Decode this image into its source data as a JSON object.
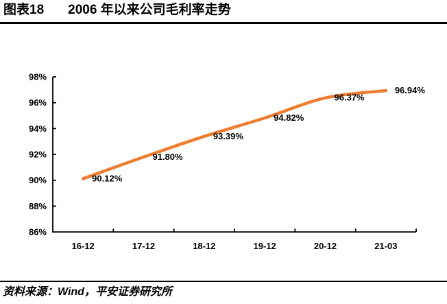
{
  "header": {
    "figure_number": "图表18",
    "title": "2006 年以来公司毛利率走势"
  },
  "chart_data": {
    "type": "line",
    "title": "2006 年以来公司毛利率走势",
    "categories": [
      "16-12",
      "17-12",
      "18-12",
      "19-12",
      "20-12",
      "21-03"
    ],
    "values": [
      90.12,
      91.8,
      93.39,
      94.82,
      96.37,
      96.94
    ],
    "point_labels": [
      "90.12%",
      "91.80%",
      "93.39%",
      "94.82%",
      "96.37%",
      "96.94%"
    ],
    "y_ticks": [
      "98%",
      "96%",
      "94%",
      "92%",
      "90%",
      "88%",
      "86%"
    ],
    "ylim": [
      86,
      98
    ],
    "y_step": 2,
    "xlabel": "",
    "ylabel": "",
    "grid": false,
    "legend": "none",
    "smooth": true,
    "line_color": "#ED7D31",
    "axis_color": "#000000",
    "text_color": "#000000"
  },
  "footer": {
    "source": "资料来源：Wind，平安证券研究所"
  }
}
